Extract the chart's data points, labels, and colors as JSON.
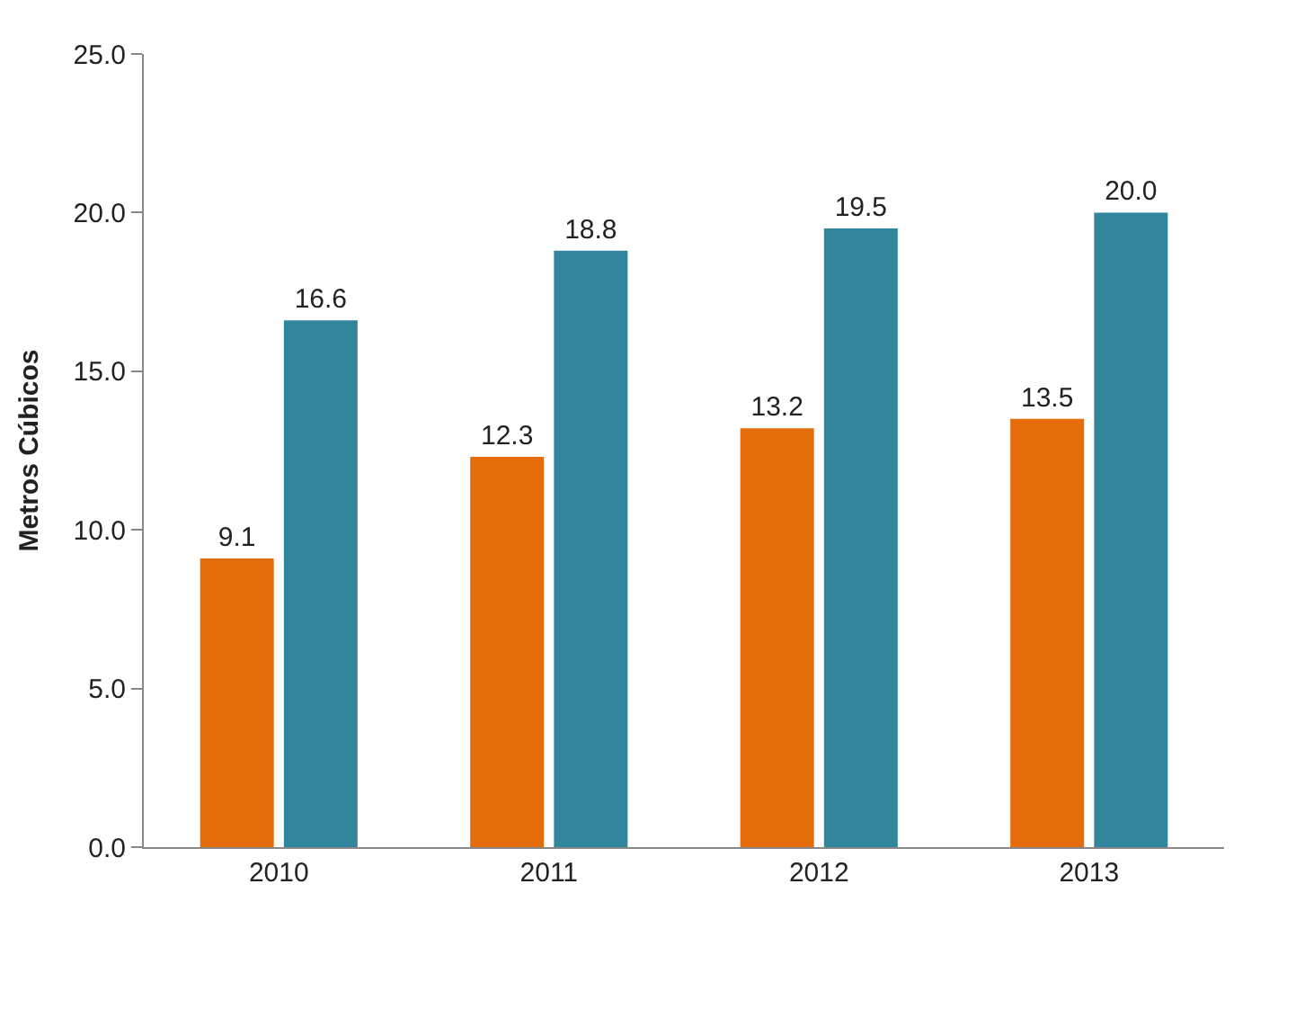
{
  "chart_data": {
    "type": "bar",
    "ylabel": "Metros Cúbicos",
    "categories": [
      "2010",
      "2011",
      "2012",
      "2013"
    ],
    "series": [
      {
        "color": "#e46c0a",
        "values": [
          9.1,
          12.3,
          13.2,
          13.5
        ],
        "value_labels": [
          "9.1",
          "12.3",
          "13.2",
          "13.5"
        ]
      },
      {
        "color": "#31859c",
        "values": [
          16.6,
          18.8,
          19.5,
          20.0
        ],
        "value_labels": [
          "16.6",
          "18.8",
          "19.5",
          "20.0"
        ]
      }
    ],
    "ylim": [
      0,
      25
    ],
    "yticks": [
      {
        "value": 0,
        "label": "0.0"
      },
      {
        "value": 5,
        "label": "5.0"
      },
      {
        "value": 10,
        "label": "10.0"
      },
      {
        "value": 15,
        "label": "15.0"
      },
      {
        "value": 20,
        "label": "20.0"
      },
      {
        "value": 25,
        "label": "25.0"
      }
    ]
  }
}
